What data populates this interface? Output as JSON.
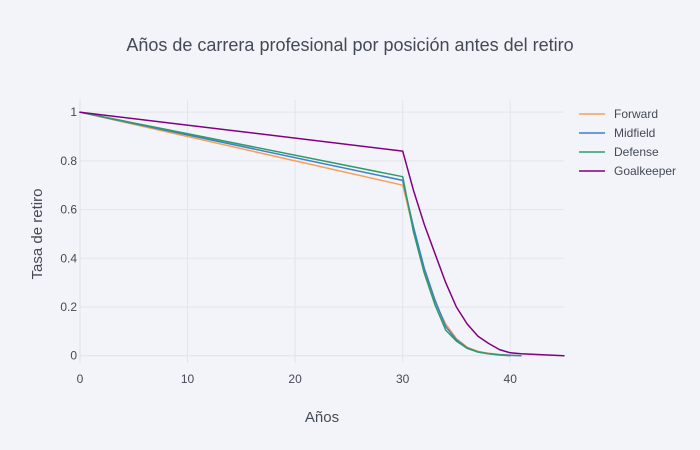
{
  "chart_data": {
    "type": "line",
    "title": "Años de carrera profesional por posición antes del retiro",
    "xlabel": "Años",
    "ylabel": "Tasa de retiro",
    "xlim": [
      0,
      45
    ],
    "ylim": [
      -0.03,
      1.05
    ],
    "x_ticks": [
      0,
      10,
      20,
      30,
      40
    ],
    "x_tick_labels": [
      "0",
      "10",
      "20",
      "30",
      "40"
    ],
    "y_ticks": [
      0,
      0.2,
      0.4,
      0.6,
      0.8,
      1
    ],
    "y_tick_labels": [
      "0",
      "0.2",
      "0.4",
      "0.6",
      "0.8",
      "1"
    ],
    "grid": true,
    "legend_position": "top-right",
    "series": [
      {
        "name": "Forward",
        "color": "#f5a05a",
        "x": [
          0,
          30,
          31,
          32,
          33,
          34,
          35,
          36,
          37,
          38,
          39,
          40,
          41
        ],
        "y": [
          1.0,
          0.7,
          0.52,
          0.35,
          0.22,
          0.13,
          0.07,
          0.035,
          0.018,
          0.01,
          0.005,
          0.002,
          0.0
        ]
      },
      {
        "name": "Midfield",
        "color": "#3f7fc4",
        "x": [
          0,
          30,
          31,
          32,
          33,
          34,
          35,
          36,
          37,
          38,
          39,
          40,
          41
        ],
        "y": [
          1.0,
          0.72,
          0.53,
          0.36,
          0.23,
          0.12,
          0.065,
          0.032,
          0.015,
          0.008,
          0.004,
          0.002,
          0.0
        ]
      },
      {
        "name": "Defense",
        "color": "#2e9c6a",
        "x": [
          0,
          30,
          31,
          32,
          33,
          34,
          35,
          36,
          37,
          38,
          39,
          40
        ],
        "y": [
          1.0,
          0.735,
          0.51,
          0.34,
          0.21,
          0.105,
          0.06,
          0.03,
          0.015,
          0.008,
          0.003,
          0.0
        ]
      },
      {
        "name": "Goalkeeper",
        "color": "#800080",
        "x": [
          0,
          30,
          31,
          32,
          33,
          34,
          35,
          36,
          37,
          38,
          39,
          40,
          41,
          45
        ],
        "y": [
          1.0,
          0.84,
          0.68,
          0.54,
          0.42,
          0.3,
          0.2,
          0.13,
          0.08,
          0.05,
          0.025,
          0.012,
          0.008,
          0.0
        ]
      }
    ]
  }
}
